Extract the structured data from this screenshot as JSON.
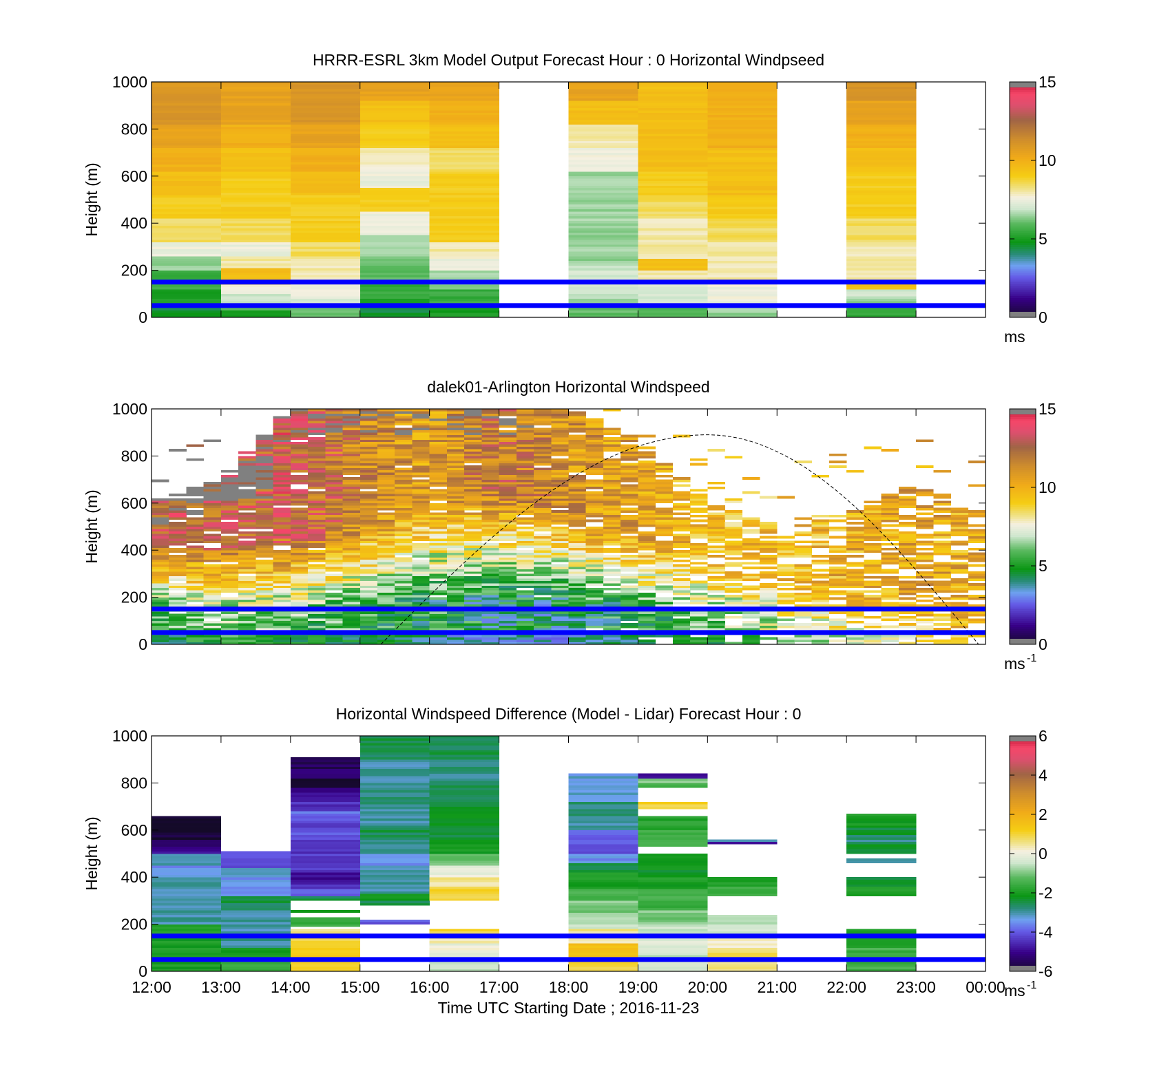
{
  "chart_data": [
    {
      "type": "heatmap",
      "title": "HRRR-ESRL 3km Model Output   Forecast Hour : 0 Horizontal Windpseed",
      "xlabel": "",
      "ylabel": "Height (m)",
      "ylim": [
        0,
        1000
      ],
      "yticks": [
        "0",
        "200",
        "400",
        "600",
        "800",
        "1000"
      ],
      "xlim": [
        12,
        24
      ],
      "colorbar": {
        "min": 0,
        "max": 15,
        "ticks": [
          "0",
          "5",
          "10",
          "15"
        ],
        "unit": "ms"
      },
      "reference_lines": [
        50,
        150
      ],
      "hours": [
        12,
        13,
        14,
        15,
        16,
        17,
        18,
        19,
        20,
        21,
        22,
        23
      ],
      "profiles": [
        [
          [
            0,
            5
          ],
          [
            20,
            4.5
          ],
          [
            50,
            5
          ],
          [
            120,
            5.5
          ],
          [
            200,
            6.5
          ],
          [
            260,
            7.5
          ],
          [
            320,
            8.5
          ],
          [
            420,
            9
          ],
          [
            520,
            9.5
          ],
          [
            620,
            10
          ],
          [
            720,
            10.5
          ],
          [
            820,
            11
          ],
          [
            920,
            11
          ]
        ],
        [
          [
            0,
            5
          ],
          [
            30,
            6
          ],
          [
            60,
            7
          ],
          [
            100,
            7.5
          ],
          [
            140,
            9.5
          ],
          [
            180,
            9.5
          ],
          [
            210,
            8
          ],
          [
            260,
            7.5
          ],
          [
            320,
            8.5
          ],
          [
            420,
            9
          ],
          [
            520,
            9
          ],
          [
            620,
            9.5
          ],
          [
            720,
            10
          ],
          [
            820,
            10.5
          ],
          [
            920,
            10.5
          ]
        ],
        [
          [
            0,
            6
          ],
          [
            40,
            7
          ],
          [
            80,
            7.5
          ],
          [
            140,
            8
          ],
          [
            220,
            8
          ],
          [
            260,
            8.5
          ],
          [
            320,
            9
          ],
          [
            420,
            9
          ],
          [
            520,
            9.5
          ],
          [
            620,
            10
          ],
          [
            720,
            10.5
          ],
          [
            820,
            11
          ],
          [
            920,
            11
          ]
        ],
        [
          [
            0,
            4.5
          ],
          [
            40,
            5
          ],
          [
            80,
            5.5
          ],
          [
            140,
            6
          ],
          [
            200,
            6
          ],
          [
            250,
            6.5
          ],
          [
            350,
            7.5
          ],
          [
            450,
            9
          ],
          [
            550,
            7.5
          ],
          [
            650,
            8
          ],
          [
            720,
            9
          ],
          [
            820,
            9.5
          ],
          [
            920,
            10.5
          ]
        ],
        [
          [
            0,
            5
          ],
          [
            50,
            5.5
          ],
          [
            120,
            6.5
          ],
          [
            200,
            7.5
          ],
          [
            250,
            8
          ],
          [
            320,
            9
          ],
          [
            420,
            9
          ],
          [
            520,
            9
          ],
          [
            620,
            8.5
          ],
          [
            720,
            9.5
          ],
          [
            820,
            10
          ],
          [
            920,
            10.5
          ]
        ],
        [],
        [
          [
            0,
            6
          ],
          [
            40,
            6.5
          ],
          [
            80,
            7
          ],
          [
            140,
            7
          ],
          [
            220,
            6.5
          ],
          [
            320,
            6.5
          ],
          [
            420,
            6.5
          ],
          [
            520,
            6.5
          ],
          [
            620,
            7.5
          ],
          [
            720,
            8
          ],
          [
            820,
            9.5
          ],
          [
            920,
            10.5
          ]
        ],
        [
          [
            0,
            6
          ],
          [
            50,
            7
          ],
          [
            100,
            7
          ],
          [
            150,
            8
          ],
          [
            200,
            9.5
          ],
          [
            250,
            8
          ],
          [
            350,
            8
          ],
          [
            420,
            8.5
          ],
          [
            520,
            9
          ],
          [
            620,
            9.5
          ],
          [
            720,
            9.5
          ],
          [
            820,
            9.5
          ],
          [
            920,
            9.5
          ]
        ],
        [
          [
            0,
            6.5
          ],
          [
            50,
            7.5
          ],
          [
            100,
            7.5
          ],
          [
            150,
            8
          ],
          [
            250,
            8
          ],
          [
            320,
            8.5
          ],
          [
            420,
            9
          ],
          [
            520,
            9.5
          ],
          [
            620,
            9.5
          ],
          [
            720,
            10
          ],
          [
            820,
            10
          ],
          [
            920,
            10
          ]
        ],
        [],
        [
          [
            0,
            5.5
          ],
          [
            40,
            6.5
          ],
          [
            80,
            7
          ],
          [
            120,
            9.5
          ],
          [
            150,
            8
          ],
          [
            250,
            8
          ],
          [
            320,
            8.5
          ],
          [
            420,
            9
          ],
          [
            520,
            9
          ],
          [
            620,
            9.5
          ],
          [
            720,
            10
          ],
          [
            820,
            10.5
          ],
          [
            920,
            11
          ]
        ],
        []
      ]
    },
    {
      "type": "heatmap",
      "title": "dalek01-Arlington  Horizontal Windspeed",
      "xlabel": "",
      "ylabel": "Height (m)",
      "ylim": [
        0,
        1000
      ],
      "yticks": [
        "0",
        "200",
        "400",
        "600",
        "800",
        "1000"
      ],
      "xlim": [
        12,
        24
      ],
      "colorbar": {
        "min": 0,
        "max": 15,
        "ticks": [
          "0",
          "5",
          "10",
          "15"
        ],
        "unit": "ms",
        "unit_exp": "-1"
      },
      "reference_lines": [
        50,
        150
      ],
      "boundary_layer_curve": {
        "x_start": 15.3,
        "x_peak": 20.0,
        "x_end": 23.9,
        "y_peak": 890
      },
      "lidar_field": {
        "columns_per_hour": 4,
        "control_hours": [
          12,
          13,
          14,
          15,
          16,
          17,
          18,
          19,
          20,
          21,
          22,
          23,
          24
        ],
        "low_speed": [
          5,
          6.5,
          6,
          5.5,
          5,
          4.5,
          4.5,
          5,
          6,
          7,
          8,
          9,
          10
        ],
        "upper_speed": [
          13,
          12.5,
          13,
          11.5,
          10.5,
          12,
          11,
          10.5,
          9.5,
          9.5,
          10,
          10.5,
          10
        ],
        "blend_height": [
          220,
          220,
          230,
          260,
          300,
          330,
          280,
          220,
          170,
          140,
          120,
          110,
          100
        ],
        "top_height": [
          600,
          700,
          1000,
          1000,
          1000,
          1000,
          1000,
          870,
          600,
          500,
          560,
          680,
          550
        ],
        "coverage": [
          0.95,
          0.9,
          0.95,
          0.98,
          0.98,
          0.98,
          0.95,
          0.85,
          0.75,
          0.7,
          0.72,
          0.72,
          0.65
        ]
      }
    },
    {
      "type": "heatmap",
      "title": "Horizontal Windspeed Difference (Model - Lidar) Forecast Hour : 0",
      "xlabel": "Time UTC  Starting Date ; 2016-11-23",
      "ylabel": "Height (m)",
      "ylim": [
        0,
        1000
      ],
      "yticks": [
        "0",
        "200",
        "400",
        "600",
        "800",
        "1000"
      ],
      "xlim": [
        12,
        24
      ],
      "xticks": [
        "12:00",
        "13:00",
        "14:00",
        "15:00",
        "16:00",
        "17:00",
        "18:00",
        "19:00",
        "20:00",
        "21:00",
        "22:00",
        "23:00",
        "00:00"
      ],
      "colorbar": {
        "min": -6,
        "max": 6,
        "ticks": [
          "-6",
          "-4",
          "-2",
          "0",
          "2",
          "4",
          "6"
        ],
        "unit": "ms",
        "unit_exp": "-1"
      },
      "reference_lines": [
        50,
        150
      ],
      "hours": [
        12,
        13,
        14,
        15,
        16,
        17,
        18,
        19,
        20,
        21,
        22,
        23
      ],
      "profiles": [
        [
          [
            0,
            -2
          ],
          [
            200,
            -3
          ],
          [
            400,
            -3.5
          ],
          [
            450,
            -3
          ],
          [
            500,
            -5
          ],
          [
            530,
            -5.5
          ],
          [
            560,
            -6.5
          ],
          [
            570,
            -5.8
          ],
          [
            580,
            -6
          ],
          [
            660,
            null
          ]
        ],
        [
          [
            0,
            -1.5
          ],
          [
            60,
            -2
          ],
          [
            100,
            -3
          ],
          [
            200,
            -3
          ],
          [
            260,
            -2.5
          ],
          [
            320,
            -3.5
          ],
          [
            400,
            -3
          ],
          [
            440,
            -4
          ],
          [
            510,
            null
          ]
        ],
        [
          [
            0,
            1
          ],
          [
            60,
            1.2
          ],
          [
            100,
            1
          ],
          [
            150,
            0.5
          ],
          [
            180,
            null
          ],
          [
            190,
            -1.5
          ],
          [
            230,
            null
          ],
          [
            250,
            -2
          ],
          [
            260,
            null
          ],
          [
            300,
            -2.5
          ],
          [
            320,
            -4
          ],
          [
            350,
            -4.5
          ],
          [
            380,
            -5
          ],
          [
            420,
            -4.3
          ],
          [
            500,
            -4.5
          ],
          [
            560,
            -4
          ],
          [
            600,
            -4.3
          ],
          [
            640,
            -3.8
          ],
          [
            680,
            -4.5
          ],
          [
            720,
            -5
          ],
          [
            780,
            -6
          ],
          [
            820,
            -5
          ],
          [
            860,
            -5.5
          ],
          [
            910,
            null
          ]
        ],
        [
          [
            0,
            null
          ],
          [
            200,
            -4
          ],
          [
            215,
            null
          ],
          [
            280,
            -2.5
          ],
          [
            300,
            -2
          ],
          [
            330,
            -3
          ],
          [
            400,
            -3
          ],
          [
            450,
            -3.5
          ],
          [
            500,
            -3
          ],
          [
            560,
            -2.5
          ],
          [
            620,
            -3
          ],
          [
            700,
            -2.8
          ],
          [
            800,
            -3
          ],
          [
            900,
            -2.5
          ],
          [
            1000,
            null
          ]
        ],
        [
          [
            0,
            -0.5
          ],
          [
            60,
            0
          ],
          [
            120,
            0.5
          ],
          [
            160,
            1
          ],
          [
            180,
            null
          ],
          [
            300,
            1
          ],
          [
            360,
            0.5
          ],
          [
            400,
            0
          ],
          [
            450,
            -1
          ],
          [
            500,
            -2
          ],
          [
            560,
            -2.5
          ],
          [
            620,
            -2.2
          ],
          [
            700,
            -2.5
          ],
          [
            800,
            -2.8
          ],
          [
            900,
            -2.5
          ],
          [
            1000,
            null
          ]
        ],
        [],
        [
          [
            0,
            1
          ],
          [
            60,
            1.5
          ],
          [
            120,
            0.5
          ],
          [
            180,
            -0.5
          ],
          [
            250,
            -1
          ],
          [
            300,
            -1.5
          ],
          [
            350,
            -2
          ],
          [
            420,
            -2.5
          ],
          [
            460,
            -3.5
          ],
          [
            500,
            -4
          ],
          [
            560,
            -3.8
          ],
          [
            600,
            -3
          ],
          [
            660,
            -2.8
          ],
          [
            720,
            -3.2
          ],
          [
            840,
            null
          ]
        ],
        [
          [
            0,
            -0.5
          ],
          [
            80,
            -0.2
          ],
          [
            160,
            -0.5
          ],
          [
            200,
            -1
          ],
          [
            260,
            -1.5
          ],
          [
            350,
            -2
          ],
          [
            420,
            -2.2
          ],
          [
            500,
            null
          ],
          [
            530,
            -1.5
          ],
          [
            600,
            -1.8
          ],
          [
            660,
            null
          ],
          [
            690,
            1
          ],
          [
            715,
            null
          ],
          [
            780,
            -1.5
          ],
          [
            800,
            -1
          ],
          [
            820,
            -5
          ],
          [
            835,
            null
          ]
        ],
        [
          [
            0,
            0.5
          ],
          [
            60,
            0.8
          ],
          [
            100,
            0.3
          ],
          [
            140,
            -0.5
          ],
          [
            240,
            null
          ],
          [
            320,
            -1.5
          ],
          [
            360,
            -2
          ],
          [
            400,
            null
          ],
          [
            535,
            -5
          ],
          [
            545,
            -3
          ],
          [
            560,
            null
          ]
        ],
        [],
        [
          [
            0,
            -1.5
          ],
          [
            100,
            -1.8
          ],
          [
            180,
            null
          ],
          [
            320,
            -1.8
          ],
          [
            360,
            -2.3
          ],
          [
            400,
            null
          ],
          [
            460,
            -2.8
          ],
          [
            480,
            null
          ],
          [
            500,
            -2.2
          ],
          [
            540,
            -2.8
          ],
          [
            580,
            -2.3
          ],
          [
            620,
            -2
          ],
          [
            670,
            null
          ]
        ],
        []
      ]
    }
  ]
}
